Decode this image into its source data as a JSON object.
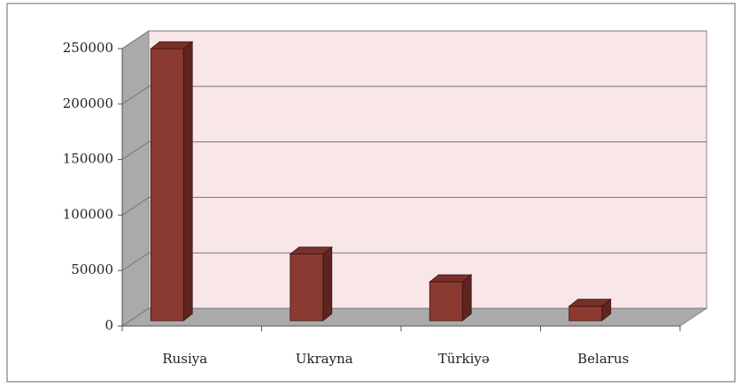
{
  "chart_data": {
    "type": "bar3d",
    "categories": [
      "Rusiya",
      "Ukrayna",
      "Türkiyə",
      "Belarus"
    ],
    "values": [
      245000,
      60000,
      35000,
      13000
    ],
    "color": "#8b3a32",
    "ylim": [
      0,
      250000
    ],
    "yticks": [
      0,
      50000,
      100000,
      150000,
      200000,
      250000
    ],
    "grid": true
  }
}
